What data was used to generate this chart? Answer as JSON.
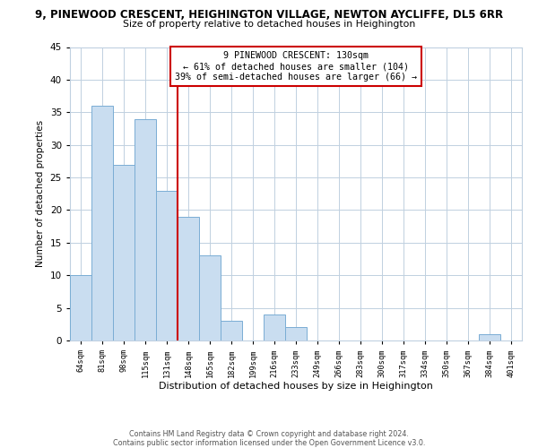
{
  "title": "9, PINEWOOD CRESCENT, HEIGHINGTON VILLAGE, NEWTON AYCLIFFE, DL5 6RR",
  "subtitle": "Size of property relative to detached houses in Heighington",
  "xlabel": "Distribution of detached houses by size in Heighington",
  "ylabel": "Number of detached properties",
  "bin_labels": [
    "64sqm",
    "81sqm",
    "98sqm",
    "115sqm",
    "131sqm",
    "148sqm",
    "165sqm",
    "182sqm",
    "199sqm",
    "216sqm",
    "233sqm",
    "249sqm",
    "266sqm",
    "283sqm",
    "300sqm",
    "317sqm",
    "334sqm",
    "350sqm",
    "367sqm",
    "384sqm",
    "401sqm"
  ],
  "bar_values": [
    10,
    36,
    27,
    34,
    23,
    19,
    13,
    3,
    0,
    4,
    2,
    0,
    0,
    0,
    0,
    0,
    0,
    0,
    0,
    1,
    0
  ],
  "bar_color": "#c9ddf0",
  "bar_edge_color": "#7aadd4",
  "ref_line_color": "#cc0000",
  "annotation_line1": "9 PINEWOOD CRESCENT: 130sqm",
  "annotation_line2": "← 61% of detached houses are smaller (104)",
  "annotation_line3": "39% of semi-detached houses are larger (66) →",
  "annotation_box_facecolor": "#ffffff",
  "annotation_box_edgecolor": "#cc0000",
  "ylim": [
    0,
    45
  ],
  "yticks": [
    0,
    5,
    10,
    15,
    20,
    25,
    30,
    35,
    40,
    45
  ],
  "footer_line1": "Contains HM Land Registry data © Crown copyright and database right 2024.",
  "footer_line2": "Contains public sector information licensed under the Open Government Licence v3.0.",
  "background_color": "#ffffff",
  "grid_color": "#c0d0e0"
}
